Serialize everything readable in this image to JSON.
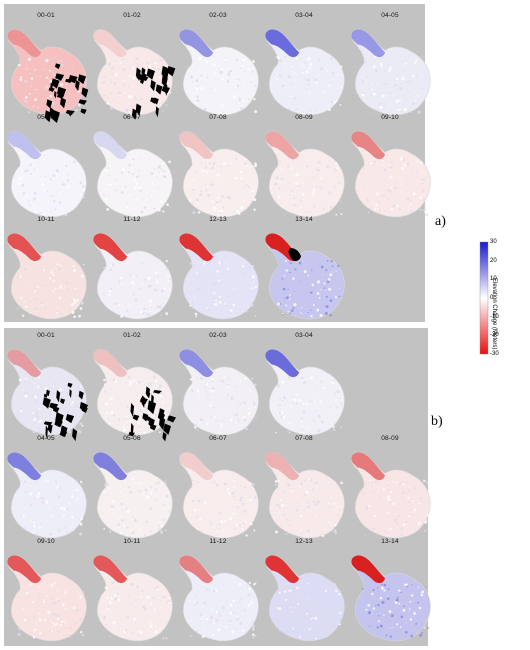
{
  "panels": [
    {
      "id": "a",
      "label": "a)",
      "maps": [
        {
          "label": "00-01",
          "fill": "#f6c0c0",
          "tint": "#e06060",
          "tint_opacity": 0.45,
          "black_patches": true
        },
        {
          "label": "01-02",
          "fill": "#f8e8e8",
          "tint": "#e07070",
          "tint_opacity": 0.2,
          "black_patches": true
        },
        {
          "label": "02-03",
          "fill": "#f3f3f8",
          "tint": "#6b6bd8",
          "tint_opacity": 0.7,
          "black_patches": false
        },
        {
          "label": "03-04",
          "fill": "#eeeef8",
          "tint": "#4a4ad6",
          "tint_opacity": 0.8,
          "black_patches": false
        },
        {
          "label": "04-05",
          "fill": "#ebebf6",
          "tint": "#6c6ce0",
          "tint_opacity": 0.65,
          "black_patches": false
        },
        {
          "label": "05-06",
          "fill": "#f4f4fa",
          "tint": "#8a8ae6",
          "tint_opacity": 0.5,
          "black_patches": false
        },
        {
          "label": "06-07",
          "fill": "#f6f4f6",
          "tint": "#a0a0e6",
          "tint_opacity": 0.35,
          "black_patches": false
        },
        {
          "label": "07-08",
          "fill": "#f8eeee",
          "tint": "#e89090",
          "tint_opacity": 0.45,
          "black_patches": false
        },
        {
          "label": "08-09",
          "fill": "#f8ecec",
          "tint": "#e67474",
          "tint_opacity": 0.6,
          "black_patches": false
        },
        {
          "label": "09-10",
          "fill": "#f8e8e8",
          "tint": "#e05a5a",
          "tint_opacity": 0.7,
          "black_patches": false
        },
        {
          "label": "10-11",
          "fill": "#f7e2e2",
          "tint": "#e03a3a",
          "tint_opacity": 0.85,
          "black_patches": false
        },
        {
          "label": "11-12",
          "fill": "#f2f0f6",
          "tint": "#e03030",
          "tint_opacity": 0.9,
          "black_patches": false
        },
        {
          "label": "12-13",
          "fill": "#e4e4f6",
          "tint": "#dd2a2a",
          "tint_opacity": 0.95,
          "black_patches": false
        },
        {
          "label": "13-14",
          "fill": "#c6c6ef",
          "tint": "#d82020",
          "tint_opacity": 1.0,
          "black_patches": false,
          "black_snout": true
        }
      ]
    },
    {
      "id": "b",
      "label": "b)",
      "maps": [
        {
          "label": "00-01",
          "fill": "#e8e6f2",
          "tint": "#e05050",
          "tint_opacity": 0.5,
          "black_patches": true
        },
        {
          "label": "01-02",
          "fill": "#f6eeee",
          "tint": "#e06a6a",
          "tint_opacity": 0.35,
          "black_patches": true
        },
        {
          "label": "02-03",
          "fill": "#f2f0f4",
          "tint": "#6464da",
          "tint_opacity": 0.7,
          "black_patches": false
        },
        {
          "label": "03-04",
          "fill": "#f0f0f6",
          "tint": "#4a4ad6",
          "tint_opacity": 0.8,
          "black_patches": false
        },
        {
          "label": "04-05",
          "fill": "#eeeef8",
          "tint": "#5a5ad8",
          "tint_opacity": 0.75,
          "black_patches": false
        },
        {
          "label": "05-06",
          "fill": "#f6f0f0",
          "tint": "#5a5ad8",
          "tint_opacity": 0.75,
          "black_patches": false
        },
        {
          "label": "06-07",
          "fill": "#f8ecec",
          "tint": "#e7a0a0",
          "tint_opacity": 0.4,
          "black_patches": false
        },
        {
          "label": "07-08",
          "fill": "#f8eaea",
          "tint": "#e48282",
          "tint_opacity": 0.55,
          "black_patches": false
        },
        {
          "label": "08-09",
          "fill": "#f8e6e6",
          "tint": "#e05656",
          "tint_opacity": 0.75,
          "black_patches": false
        },
        {
          "label": "09-10",
          "fill": "#f8e2e2",
          "tint": "#df4040",
          "tint_opacity": 0.85,
          "black_patches": false
        },
        {
          "label": "10-11",
          "fill": "#f8ebeb",
          "tint": "#df4040",
          "tint_opacity": 0.85,
          "black_patches": false
        },
        {
          "label": "11-12",
          "fill": "#eeeef8",
          "tint": "#e05050",
          "tint_opacity": 0.7,
          "black_patches": false
        },
        {
          "label": "12-13",
          "fill": "#dcdcf4",
          "tint": "#dd2a2a",
          "tint_opacity": 0.95,
          "black_patches": false
        },
        {
          "label": "13-14",
          "fill": "#c4c4ee",
          "tint": "#d82020",
          "tint_opacity": 1.0,
          "black_patches": false
        }
      ]
    }
  ],
  "legend": {
    "title": "Elevation Change (Meters)",
    "ticks": [
      "30",
      "20",
      "10",
      "0",
      "-10",
      "-20",
      "-30"
    ],
    "colors": {
      "top": "#1a1ad0",
      "mid": "#ffffff",
      "bottom": "#e81010"
    }
  }
}
